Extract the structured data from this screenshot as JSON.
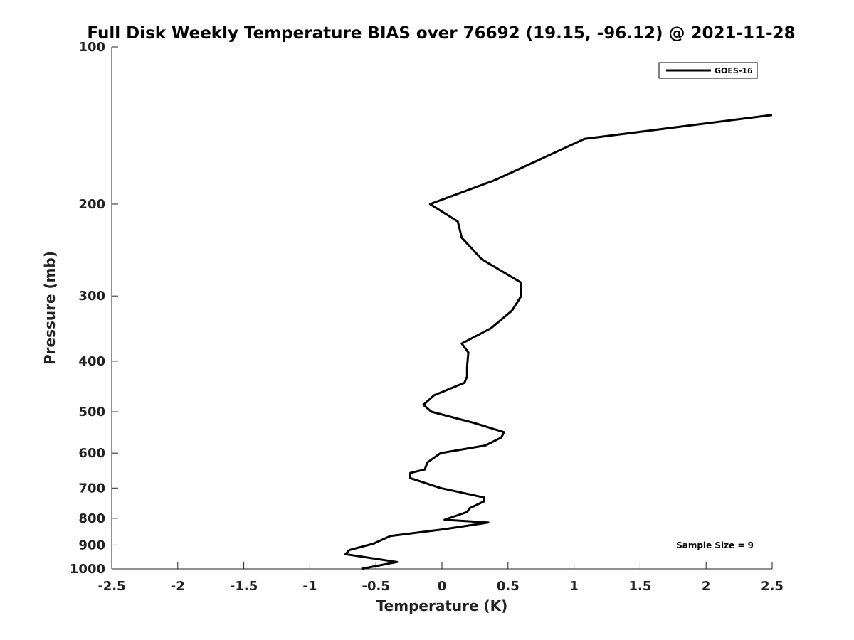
{
  "chart_data": {
    "type": "line",
    "title": "Full Disk Weekly Temperature BIAS over 76692 (19.15, -96.12) @ 2021-11-28",
    "xlabel": "Temperature (K)",
    "ylabel": "Pressure (mb)",
    "xlim": [
      -2.5,
      2.5
    ],
    "ylim": [
      100,
      1000
    ],
    "y_scale": "log",
    "y_reversed": true,
    "x_ticks": [
      "-2.5",
      "-2",
      "-1.5",
      "-1",
      "-0.5",
      "0",
      "0.5",
      "1",
      "1.5",
      "2",
      "2.5"
    ],
    "y_ticks": [
      "100",
      "200",
      "300",
      "400",
      "500",
      "600",
      "700",
      "800",
      "900",
      "1000"
    ],
    "grid": false,
    "legend_position": "top-right",
    "annotation": "Sample Size = 9",
    "series": [
      {
        "name": "GOES-16",
        "color": "#000000",
        "points": [
          [
            2.5,
            135
          ],
          [
            1.08,
            150
          ],
          [
            0.4,
            180
          ],
          [
            -0.09,
            200
          ],
          [
            0.12,
            216
          ],
          [
            0.15,
            232
          ],
          [
            0.3,
            255
          ],
          [
            0.6,
            283
          ],
          [
            0.6,
            300
          ],
          [
            0.53,
            320
          ],
          [
            0.37,
            346
          ],
          [
            0.15,
            370
          ],
          [
            0.2,
            385
          ],
          [
            0.19,
            410
          ],
          [
            0.19,
            428
          ],
          [
            0.17,
            440
          ],
          [
            -0.06,
            465
          ],
          [
            -0.14,
            485
          ],
          [
            -0.08,
            500
          ],
          [
            0.24,
            525
          ],
          [
            0.47,
            547
          ],
          [
            0.45,
            560
          ],
          [
            0.33,
            580
          ],
          [
            -0.01,
            600
          ],
          [
            -0.11,
            625
          ],
          [
            -0.13,
            645
          ],
          [
            -0.24,
            655
          ],
          [
            -0.24,
            670
          ],
          [
            -0.01,
            700
          ],
          [
            0.32,
            730
          ],
          [
            0.32,
            742
          ],
          [
            0.21,
            765
          ],
          [
            0.19,
            778
          ],
          [
            0.02,
            805
          ],
          [
            0.35,
            815
          ],
          [
            0.01,
            840
          ],
          [
            -0.39,
            865
          ],
          [
            -0.52,
            895
          ],
          [
            -0.7,
            920
          ],
          [
            -0.73,
            937
          ],
          [
            -0.34,
            970
          ],
          [
            -0.61,
            1000
          ]
        ]
      }
    ]
  }
}
